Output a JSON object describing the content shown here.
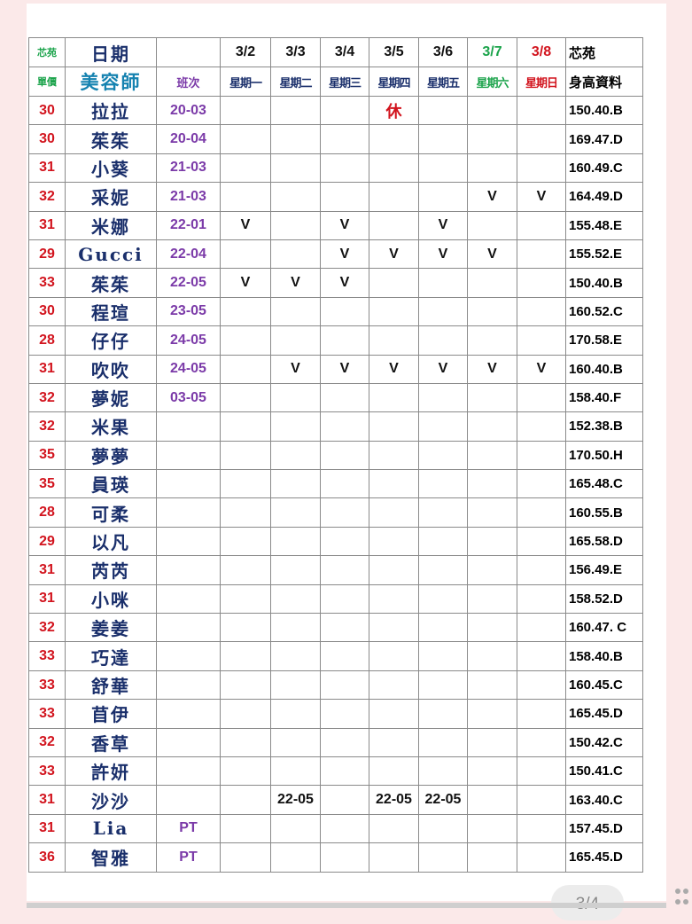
{
  "header": {
    "corner_top": "芯苑",
    "date_label": "日期",
    "corner_bottom": "單價",
    "stylist_label": "美容師",
    "shift_label": "班次",
    "right_top": "芯苑",
    "right_bottom": "身高資料",
    "dates": [
      "3/2",
      "3/3",
      "3/4",
      "3/5",
      "3/6",
      "3/7",
      "3/8"
    ],
    "weekdays": [
      "星期一",
      "星期二",
      "星期三",
      "星期四",
      "星期五",
      "星期六",
      "星期日"
    ]
  },
  "colors": {
    "weekend_sat": "#1aa34a",
    "weekend_sun": "#d2141e",
    "price": "#d2141e",
    "shift": "#7b3aa8",
    "name": "#1a2f6b"
  },
  "rows": [
    {
      "price": "30",
      "name": "拉拉",
      "shift": "20-03",
      "days": [
        "",
        "",
        "",
        "休",
        "",
        "",
        ""
      ],
      "height": "150.40.B"
    },
    {
      "price": "30",
      "name": "茱茱",
      "shift": "20-04",
      "days": [
        "",
        "",
        "",
        "",
        "",
        "",
        ""
      ],
      "height": "169.47.D"
    },
    {
      "price": "31",
      "name": "小葵",
      "shift": "21-03",
      "days": [
        "",
        "",
        "",
        "",
        "",
        "",
        ""
      ],
      "height": "160.49.C"
    },
    {
      "price": "32",
      "name": "采妮",
      "shift": "21-03",
      "days": [
        "",
        "",
        "",
        "",
        "",
        "V",
        "V"
      ],
      "height": "164.49.D"
    },
    {
      "price": "31",
      "name": "米娜",
      "shift": "22-01",
      "days": [
        "V",
        "",
        "V",
        "",
        "V",
        "",
        ""
      ],
      "height": "155.48.E"
    },
    {
      "price": "29",
      "name": "Gucci",
      "shift": "22-04",
      "days": [
        "",
        "",
        "V",
        "V",
        "V",
        "V",
        ""
      ],
      "height": "155.52.E"
    },
    {
      "price": "33",
      "name": "茱茱",
      "shift": "22-05",
      "days": [
        "V",
        "V",
        "V",
        "",
        "",
        "",
        ""
      ],
      "height": "150.40.B"
    },
    {
      "price": "30",
      "name": "程瑄",
      "shift": "23-05",
      "days": [
        "",
        "",
        "",
        "",
        "",
        "",
        ""
      ],
      "height": "160.52.C"
    },
    {
      "price": "28",
      "name": "仔仔",
      "shift": "24-05",
      "days": [
        "",
        "",
        "",
        "",
        "",
        "",
        ""
      ],
      "height": "170.58.E"
    },
    {
      "price": "31",
      "name": "吹吹",
      "shift": "24-05",
      "days": [
        "",
        "V",
        "V",
        "V",
        "V",
        "V",
        "V"
      ],
      "height": "160.40.B"
    },
    {
      "price": "32",
      "name": "夢妮",
      "shift": "03-05",
      "days": [
        "",
        "",
        "",
        "",
        "",
        "",
        ""
      ],
      "height": "158.40.F"
    },
    {
      "price": "32",
      "name": "米果",
      "shift": "",
      "days": [
        "",
        "",
        "",
        "",
        "",
        "",
        ""
      ],
      "height": "152.38.B"
    },
    {
      "price": "35",
      "name": "夢夢",
      "shift": "",
      "days": [
        "",
        "",
        "",
        "",
        "",
        "",
        ""
      ],
      "height": "170.50.H"
    },
    {
      "price": "35",
      "name": "員瑛",
      "shift": "",
      "days": [
        "",
        "",
        "",
        "",
        "",
        "",
        ""
      ],
      "height": "165.48.C"
    },
    {
      "price": "28",
      "name": "可柔",
      "shift": "",
      "days": [
        "",
        "",
        "",
        "",
        "",
        "",
        ""
      ],
      "height": "160.55.B"
    },
    {
      "price": "29",
      "name": "以凡",
      "shift": "",
      "days": [
        "",
        "",
        "",
        "",
        "",
        "",
        ""
      ],
      "height": "165.58.D"
    },
    {
      "price": "31",
      "name": "芮芮",
      "shift": "",
      "days": [
        "",
        "",
        "",
        "",
        "",
        "",
        ""
      ],
      "height": "156.49.E"
    },
    {
      "price": "31",
      "name": "小咪",
      "shift": "",
      "days": [
        "",
        "",
        "",
        "",
        "",
        "",
        ""
      ],
      "height": "158.52.D"
    },
    {
      "price": "32",
      "name": "姜姜",
      "shift": "",
      "days": [
        "",
        "",
        "",
        "",
        "",
        "",
        ""
      ],
      "height": "160.47. C"
    },
    {
      "price": "33",
      "name": "巧達",
      "shift": "",
      "days": [
        "",
        "",
        "",
        "",
        "",
        "",
        ""
      ],
      "height": "158.40.B"
    },
    {
      "price": "33",
      "name": "舒華",
      "shift": "",
      "days": [
        "",
        "",
        "",
        "",
        "",
        "",
        ""
      ],
      "height": "160.45.C"
    },
    {
      "price": "33",
      "name": "苜伊",
      "shift": "",
      "days": [
        "",
        "",
        "",
        "",
        "",
        "",
        ""
      ],
      "height": "165.45.D"
    },
    {
      "price": "32",
      "name": "香草",
      "shift": "",
      "days": [
        "",
        "",
        "",
        "",
        "",
        "",
        ""
      ],
      "height": "150.42.C"
    },
    {
      "price": "33",
      "name": "許妍",
      "shift": "",
      "days": [
        "",
        "",
        "",
        "",
        "",
        "",
        ""
      ],
      "height": "150.41.C"
    },
    {
      "price": "31",
      "name": "沙沙",
      "shift": "",
      "days": [
        "",
        "22-05",
        "",
        "22-05",
        "22-05",
        "",
        ""
      ],
      "height": "163.40.C"
    },
    {
      "price": "31",
      "name": "Lia",
      "shift": "PT",
      "days": [
        "",
        "",
        "",
        "",
        "",
        "",
        ""
      ],
      "height": "157.45.D"
    },
    {
      "price": "36",
      "name": "智雅",
      "shift": "PT",
      "days": [
        "",
        "",
        "",
        "",
        "",
        "",
        ""
      ],
      "height": "165.45.D"
    }
  ],
  "pager": {
    "label": "3/4"
  },
  "icons": {
    "pager_menu": "grid-dots-icon"
  }
}
